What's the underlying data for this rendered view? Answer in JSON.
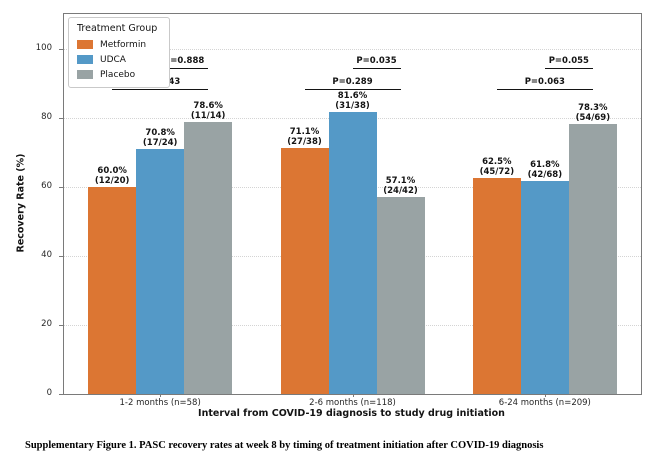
{
  "figure": {
    "caption": "Supplementary Figure 1. PASC recovery rates at week 8 by timing of treatment initiation after COVID-19 diagnosis"
  },
  "chart_data": {
    "type": "bar",
    "title": "",
    "xlabel": "Interval from COVID-19 diagnosis to study drug initiation",
    "ylabel": "Recovery Rate (%)",
    "ylim": [
      0,
      110
    ],
    "yticks": [
      0,
      20,
      40,
      60,
      80,
      100
    ],
    "grid": "horizontal-dotted",
    "legend_title": "Treatment Group",
    "legend_position": "upper-left",
    "categories": [
      "1-2 months (n=58)",
      "2-6 months (n=118)",
      "6-24 months (n=209)"
    ],
    "series": [
      {
        "name": "Metformin",
        "color": "#DC7633",
        "values": [
          60.0,
          71.1,
          62.5
        ],
        "labels": [
          "60.0%",
          "71.1%",
          "62.5%"
        ],
        "fractions": [
          "(12/20)",
          "(27/38)",
          "(45/72)"
        ]
      },
      {
        "name": "UDCA",
        "color": "#5499C7",
        "values": [
          70.8,
          81.6,
          61.8
        ],
        "labels": [
          "70.8%",
          "81.6%",
          "61.8%"
        ],
        "fractions": [
          "(17/24)",
          "(31/38)",
          "(42/68)"
        ]
      },
      {
        "name": "Placebo",
        "color": "#99A3A4",
        "values": [
          78.6,
          57.1,
          78.3
        ],
        "labels": [
          "78.6%",
          "57.1%",
          "78.3%"
        ],
        "fractions": [
          "(11/14)",
          "(24/42)",
          "(54/69)"
        ]
      }
    ],
    "significance_brackets": [
      {
        "group": 0,
        "comparison": "Metformin-vs-Placebo",
        "level": "lower",
        "label": "P=0.443"
      },
      {
        "group": 0,
        "comparison": "UDCA-vs-Placebo",
        "level": "upper",
        "label": "P=0.888"
      },
      {
        "group": 1,
        "comparison": "Metformin-vs-Placebo",
        "level": "lower",
        "label": "P=0.289"
      },
      {
        "group": 1,
        "comparison": "UDCA-vs-Placebo",
        "level": "upper",
        "label": "P=0.035"
      },
      {
        "group": 2,
        "comparison": "Metformin-vs-Placebo",
        "level": "lower",
        "label": "P=0.063"
      },
      {
        "group": 2,
        "comparison": "UDCA-vs-Placebo",
        "level": "upper",
        "label": "P=0.055"
      }
    ]
  }
}
